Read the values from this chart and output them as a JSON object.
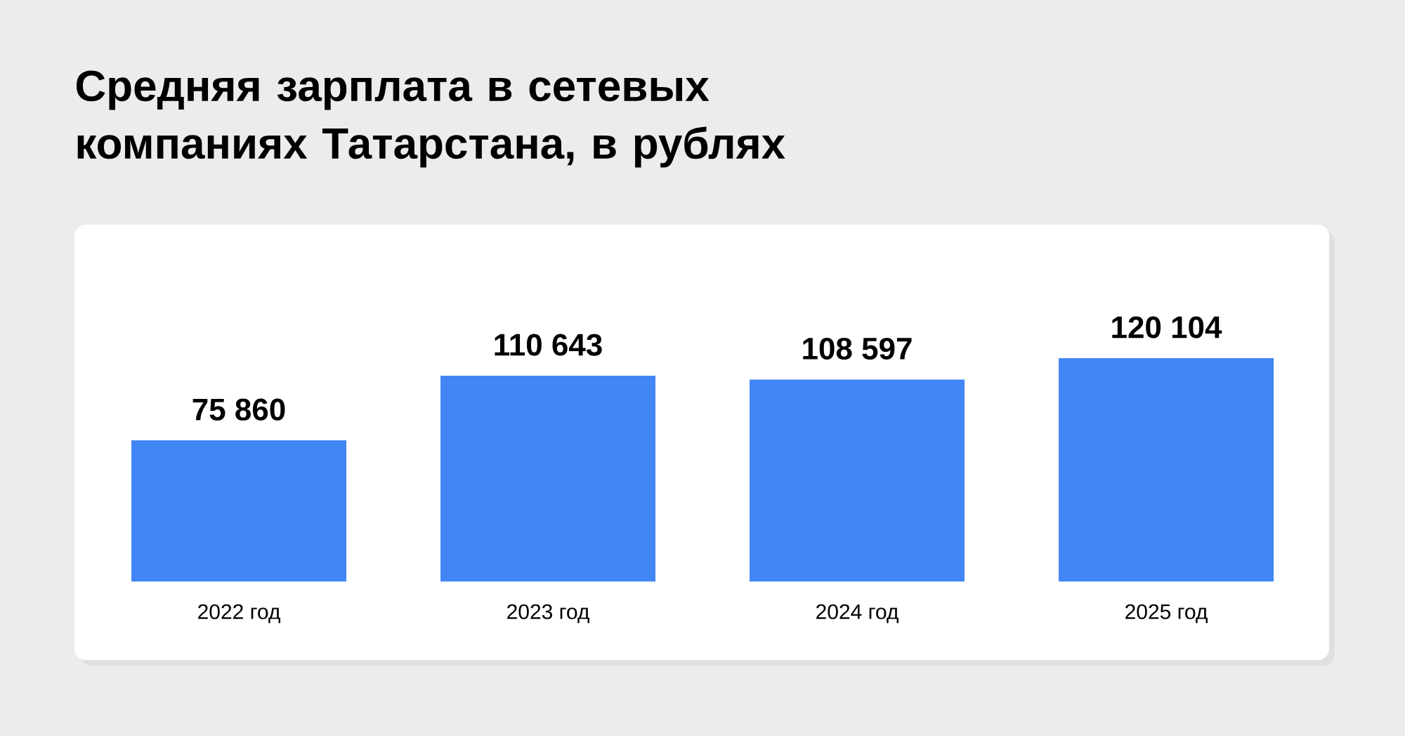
{
  "chart_data": {
    "type": "bar",
    "title": "Средняя зарплата в сетевых компаниях Татарстана, в рублях",
    "categories": [
      "2022 год",
      "2023 год",
      "2024 год",
      "2025 год"
    ],
    "values": [
      75860,
      110643,
      108597,
      120104
    ],
    "value_labels": [
      "75 860",
      "110 643",
      "108 597",
      "120 104"
    ],
    "color": "#4286f5"
  }
}
